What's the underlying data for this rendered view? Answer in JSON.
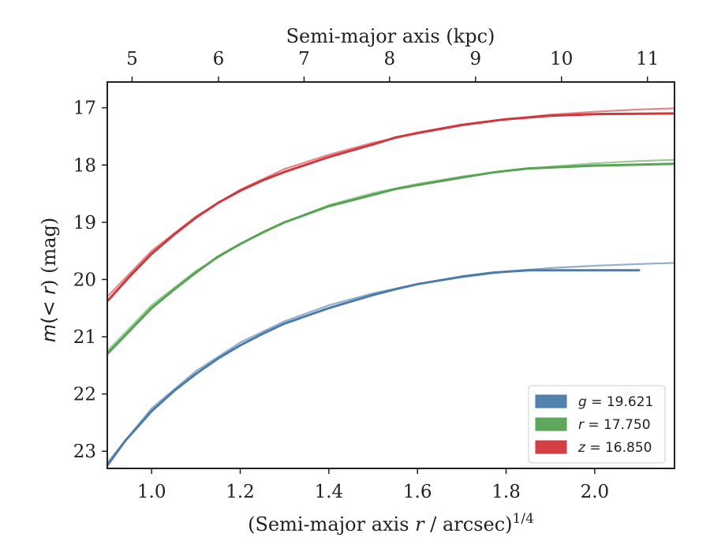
{
  "chart_data": {
    "type": "line",
    "xlabel_parts": [
      "(Semi-major axis ",
      "r",
      " / arcsec)",
      "1/4"
    ],
    "ylabel_parts": [
      "m",
      "(< ",
      "r",
      ") (mag)"
    ],
    "top_xlabel": "Semi-major axis (kpc)",
    "xlim": [
      0.9,
      2.18
    ],
    "ylim": [
      23.3,
      16.55
    ],
    "y_inverted": true,
    "x_ticks": [
      1.0,
      1.2,
      1.4,
      1.6,
      1.8,
      2.0
    ],
    "x_tick_labels": [
      "1.0",
      "1.2",
      "1.4",
      "1.6",
      "1.8",
      "2.0"
    ],
    "y_ticks": [
      17,
      18,
      19,
      20,
      21,
      22,
      23
    ],
    "y_tick_labels": [
      "17",
      "18",
      "19",
      "20",
      "21",
      "22",
      "23"
    ],
    "top_ticks_kpc": [
      5,
      6,
      7,
      8,
      9,
      10,
      11
    ],
    "top_tick_labels": [
      "5",
      "6",
      "7",
      "8",
      "9",
      "10",
      "11"
    ],
    "top_ticks_x_position": [
      0.956,
      1.151,
      1.344,
      1.537,
      1.731,
      1.925,
      2.119
    ],
    "legend": {
      "position": "lower-right"
    },
    "series": [
      {
        "name": "g = 19.621",
        "band": "g",
        "mag": "19.621",
        "color": "#4a7bab",
        "data_x": [
          0.9,
          0.94,
          1.0,
          1.05,
          1.1,
          1.15,
          1.2,
          1.25,
          1.3,
          1.4,
          1.5,
          1.55,
          1.6,
          1.7,
          1.77,
          1.85,
          1.9,
          2.0,
          2.1
        ],
        "data_y": [
          23.25,
          22.82,
          22.3,
          21.95,
          21.65,
          21.38,
          21.15,
          20.95,
          20.77,
          20.5,
          20.27,
          20.17,
          20.08,
          19.95,
          19.88,
          19.84,
          19.84,
          19.84,
          19.84
        ],
        "model_x": [
          0.9,
          1.0,
          1.1,
          1.2,
          1.3,
          1.4,
          1.5,
          1.6,
          1.7,
          1.8,
          1.9,
          2.0,
          2.1,
          2.18
        ],
        "model_y": [
          23.2,
          22.25,
          21.6,
          21.1,
          20.73,
          20.45,
          20.24,
          20.08,
          19.96,
          19.86,
          19.8,
          19.76,
          19.73,
          19.71
        ]
      },
      {
        "name": "r = 17.750",
        "band": "r",
        "mag": "17.750",
        "color": "#56a352",
        "data_x": [
          0.9,
          0.95,
          1.0,
          1.05,
          1.1,
          1.15,
          1.2,
          1.25,
          1.3,
          1.4,
          1.5,
          1.55,
          1.6,
          1.7,
          1.77,
          1.85,
          2.0,
          2.18
        ],
        "data_y": [
          21.3,
          20.9,
          20.5,
          20.18,
          19.88,
          19.6,
          19.38,
          19.18,
          19.0,
          18.72,
          18.52,
          18.42,
          18.35,
          18.22,
          18.13,
          18.06,
          18.01,
          17.98
        ],
        "model_x": [
          0.9,
          1.0,
          1.1,
          1.2,
          1.3,
          1.4,
          1.5,
          1.6,
          1.7,
          1.8,
          1.9,
          2.0,
          2.1,
          2.18
        ],
        "model_y": [
          21.25,
          20.45,
          19.85,
          19.38,
          19.0,
          18.7,
          18.49,
          18.33,
          18.2,
          18.1,
          18.03,
          17.97,
          17.93,
          17.91
        ]
      },
      {
        "name": "z = 16.850",
        "band": "z",
        "mag": "16.850",
        "color": "#d2353b",
        "data_x": [
          0.9,
          0.95,
          1.0,
          1.05,
          1.1,
          1.15,
          1.2,
          1.25,
          1.3,
          1.4,
          1.5,
          1.55,
          1.6,
          1.7,
          1.8,
          1.9,
          2.0,
          2.18
        ],
        "data_y": [
          20.38,
          19.95,
          19.55,
          19.22,
          18.92,
          18.66,
          18.45,
          18.27,
          18.12,
          17.86,
          17.64,
          17.52,
          17.44,
          17.3,
          17.2,
          17.14,
          17.11,
          17.1
        ],
        "model_x": [
          0.9,
          1.0,
          1.1,
          1.2,
          1.3,
          1.4,
          1.5,
          1.6,
          1.7,
          1.8,
          1.9,
          2.0,
          2.1,
          2.18
        ],
        "model_y": [
          20.3,
          19.5,
          18.9,
          18.43,
          18.07,
          17.82,
          17.61,
          17.45,
          17.31,
          17.2,
          17.12,
          17.07,
          17.03,
          17.01
        ]
      }
    ]
  }
}
